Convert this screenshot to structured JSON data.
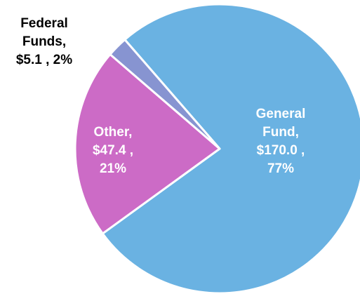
{
  "chart_data": {
    "type": "pie",
    "title": "",
    "slices": [
      {
        "name": "General Fund",
        "value": 170.0,
        "percent": 77,
        "color": "#6ab2e2",
        "label_lines": [
          "General",
          "Fund,",
          "$170.0 ,",
          "77%"
        ],
        "label_color": "#ffffff",
        "label_inside": true
      },
      {
        "name": "Other",
        "value": 47.4,
        "percent": 21,
        "color": "#cc6bc6",
        "label_lines": [
          "Other,",
          "$47.4 ,",
          "21%"
        ],
        "label_color": "#ffffff",
        "label_inside": true
      },
      {
        "name": "Federal Funds",
        "value": 5.1,
        "percent": 2,
        "color": "#8794d1",
        "label_lines": [
          "Federal",
          "Funds,",
          "$5.1 , 2%"
        ],
        "label_color": "#000000",
        "label_inside": false
      }
    ],
    "start_angle_deg": -131,
    "direction": "clockwise",
    "legend": "none"
  }
}
